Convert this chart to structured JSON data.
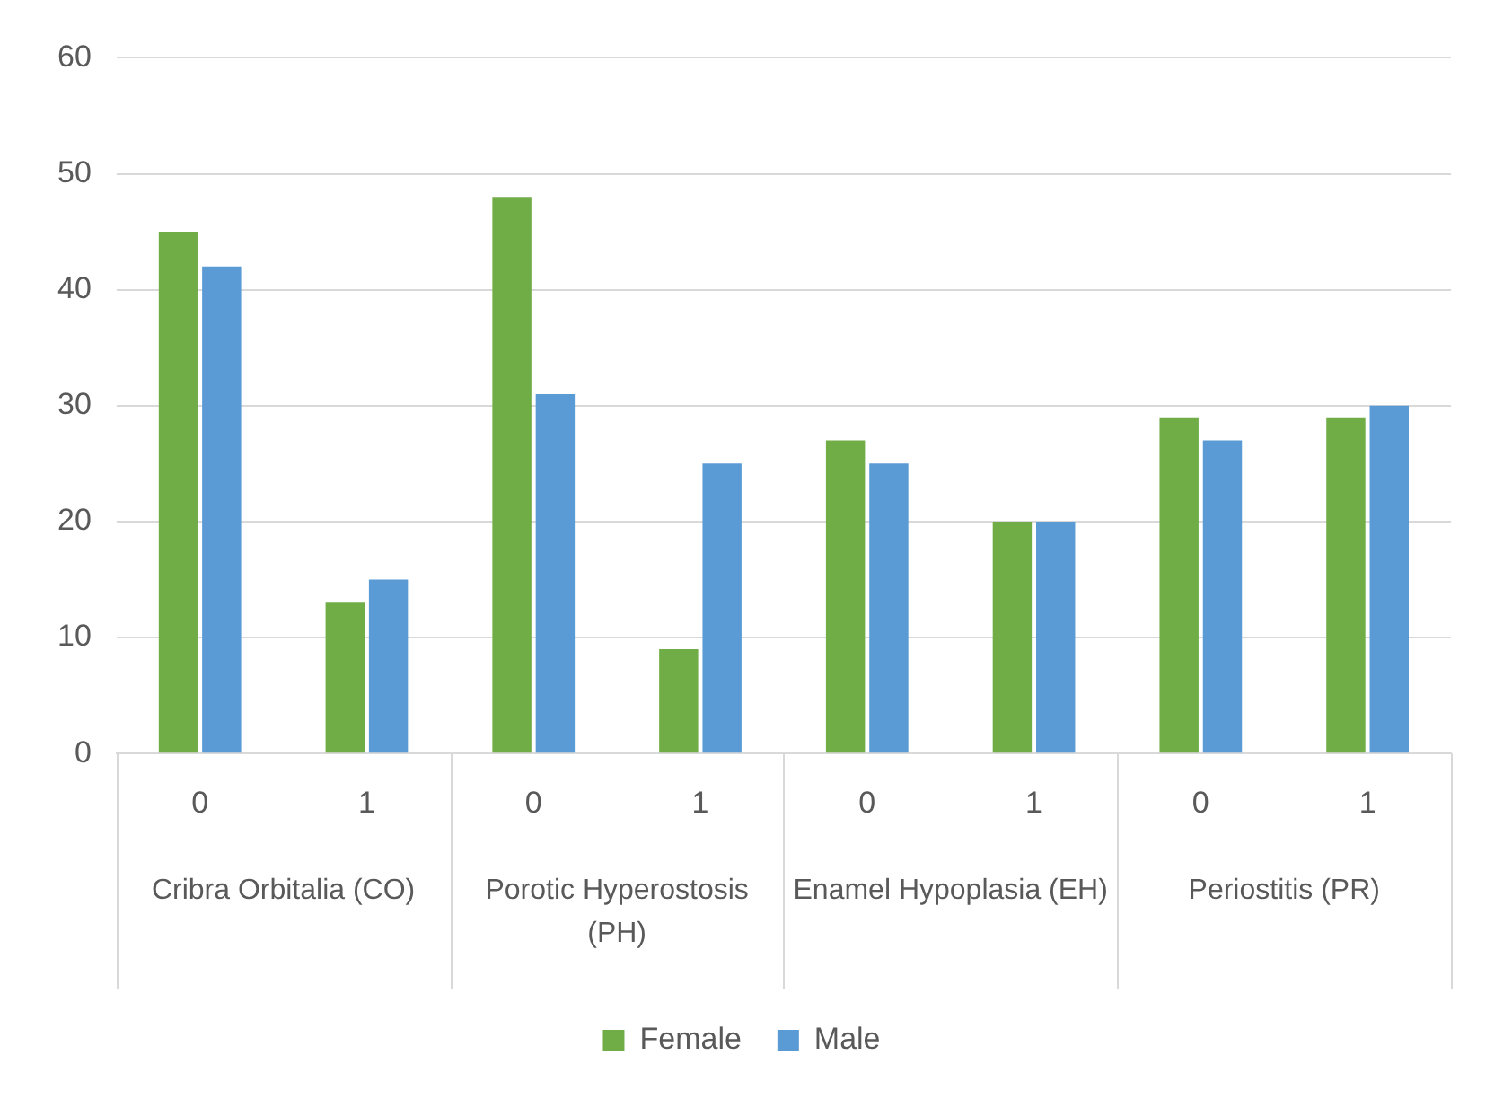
{
  "chart_data": {
    "type": "bar",
    "categories": [
      "0",
      "1",
      "0",
      "1",
      "0",
      "1",
      "0",
      "1"
    ],
    "series": [
      {
        "name": "Female",
        "color": "#70ad47",
        "values": [
          45,
          13,
          48,
          9,
          27,
          20,
          29,
          29
        ]
      },
      {
        "name": "Male",
        "color": "#5b9bd5",
        "values": [
          42,
          15,
          31,
          25,
          25,
          20,
          27,
          30
        ]
      }
    ],
    "annotations": [
      "Cribra Orbitalia (CO)",
      "Porotic Hyperostosis (PH)",
      "Enamel Hypoplasia (EH)",
      "Periostitis (PR)"
    ],
    "ylim": [
      0,
      60
    ],
    "yticks": [
      0,
      10,
      20,
      30,
      40,
      50,
      60
    ],
    "grid": "y",
    "legend": "bottom"
  }
}
